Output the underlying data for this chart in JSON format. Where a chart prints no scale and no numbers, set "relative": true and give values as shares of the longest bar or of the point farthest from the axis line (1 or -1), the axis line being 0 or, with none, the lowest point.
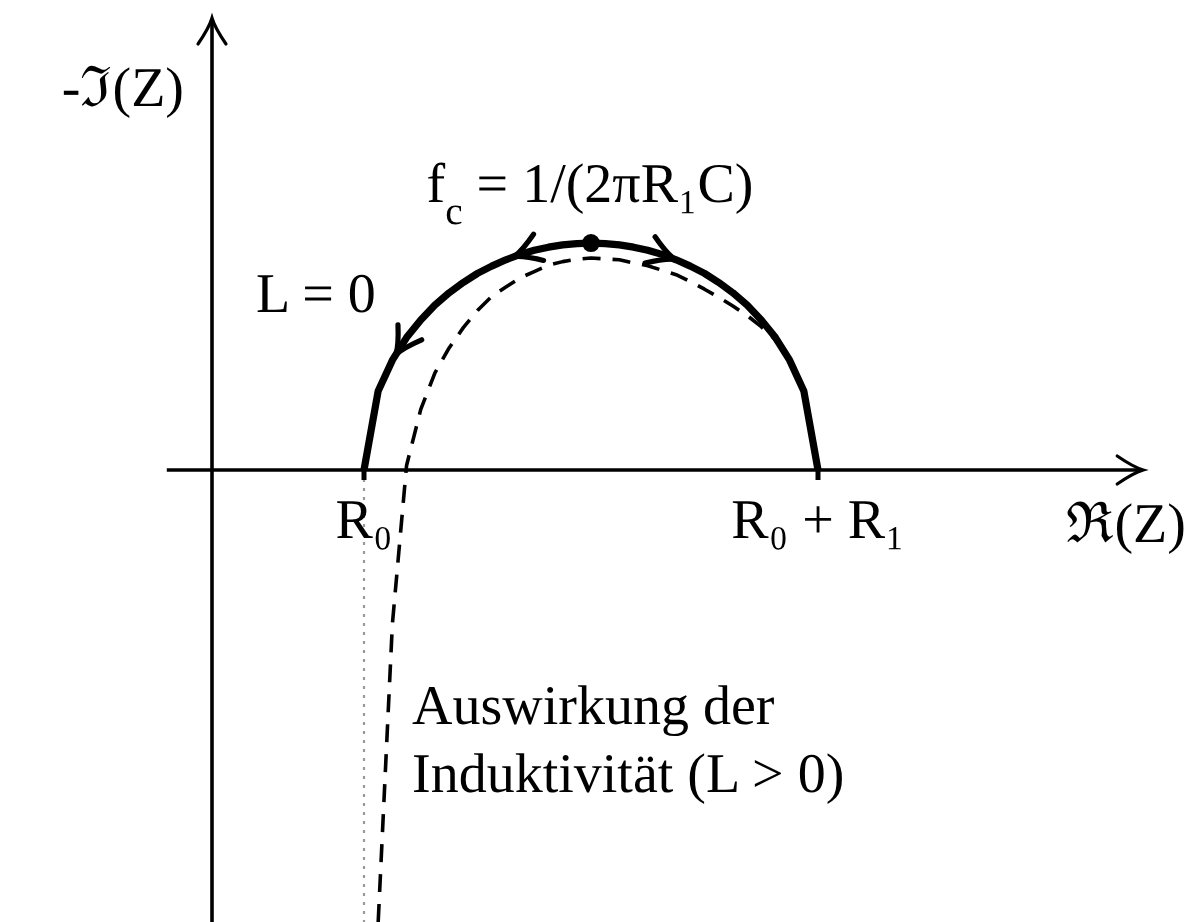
{
  "chart_data": {
    "type": "line",
    "relative": true,
    "xlabel": "ℜ(Z)",
    "ylabel": "-ℑ(Z)",
    "categories": [
      "R₀",
      null,
      null,
      null,
      null,
      null,
      null,
      null,
      null,
      null,
      null,
      null,
      null,
      null,
      null,
      null,
      null,
      null,
      null,
      null,
      null,
      null,
      null,
      null,
      null,
      null,
      null,
      null,
      null,
      null,
      null,
      null,
      "R₀ + R₁"
    ],
    "annotations": [
      "f$_{c}$ = 1/(2πR₁C)"
    ],
    "ref_lines": [
      {
        "axis": "x",
        "value": "R₀",
        "color": "#999999",
        "line_style": "dotted"
      }
    ],
    "series": [
      {
        "name": "L = 0",
        "color": "#000000",
        "line_style": "solid",
        "values": [
          0,
          0.175,
          0.243,
          0.293,
          0.332,
          0.365,
          0.392,
          0.415,
          0.435,
          0.451,
          0.465,
          0.477,
          0.486,
          0.493,
          0.498,
          0.501,
          0.502,
          0.501,
          0.498,
          0.493,
          0.486,
          0.477,
          0.465,
          0.451,
          0.435,
          0.415,
          0.392,
          0.365,
          0.332,
          0.293,
          0.243,
          0.175,
          0
        ]
      },
      {
        "name": "Auswirkung der Induktivität (L > 0)",
        "color": "#000000",
        "line_style": "dashed",
        "values": [
          null,
          -1,
          -0.341,
          0.01,
          0.134,
          0.215,
          0.27,
          0.315,
          0.353,
          0.384,
          0.405,
          0.425,
          0.439,
          0.453,
          0.461,
          0.466,
          0.469,
          0.467,
          0.465,
          0.458,
          0.452,
          0.442,
          0.432,
          0.417,
          0.4,
          0.382,
          0.363,
          0.342,
          0.317,
          0.288,
          0.243,
          0.175,
          0
        ]
      },
      {
        "type": "scatter",
        "color": "#000000",
        "marker": "circle",
        "values": [
          null,
          null,
          null,
          null,
          null,
          null,
          null,
          null,
          null,
          null,
          null,
          null,
          null,
          null,
          null,
          null,
          0.502,
          null,
          null,
          null,
          null,
          null,
          null,
          null,
          null,
          null,
          null,
          null,
          null,
          null,
          null,
          null,
          null
        ]
      }
    ]
  }
}
